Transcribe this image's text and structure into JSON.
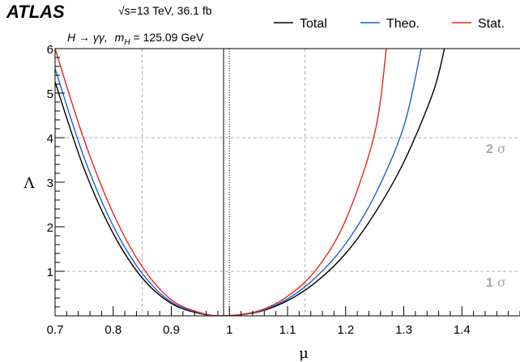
{
  "header": {
    "experiment": "ATLAS",
    "energy_line": "√s=13 TeV, 36.1 fb",
    "process_line_prefix": "H → γγ,",
    "process_line_mass": "m",
    "process_line_mass_sub": "H",
    "process_line_value": "= 125.09 GeV"
  },
  "chart_data": {
    "type": "line",
    "xlabel": "μ",
    "ylabel": "Λ",
    "xlim": [
      0.7,
      1.5
    ],
    "ylim": [
      0,
      6
    ],
    "x_ticks": [
      "0.7",
      "0.8",
      "0.9",
      "1",
      "1.1",
      "1.2",
      "1.3",
      "1.4"
    ],
    "x_tick_values": [
      0.7,
      0.8,
      0.9,
      1.0,
      1.1,
      1.2,
      1.3,
      1.4
    ],
    "y_ticks": [
      "1",
      "2",
      "3",
      "4",
      "5",
      "6"
    ],
    "y_tick_values": [
      1,
      2,
      3,
      4,
      5,
      6
    ],
    "legend": {
      "position": "top",
      "entries": [
        "Total",
        "Theo.",
        "Stat."
      ]
    },
    "series": [
      {
        "name": "Total",
        "color": "#000000",
        "best_fit": 0.99,
        "x": [
          0.7,
          0.75,
          0.8,
          0.85,
          0.9,
          0.95,
          0.99,
          1.05,
          1.1,
          1.15,
          1.2,
          1.25,
          1.3,
          1.35,
          1.37
        ],
        "y": [
          5.25,
          3.3,
          1.85,
          0.85,
          0.28,
          0.05,
          0.0,
          0.09,
          0.34,
          0.77,
          1.4,
          2.3,
          3.45,
          5.0,
          6.0
        ]
      },
      {
        "name": "Theo.",
        "color": "#1f5fd1",
        "best_fit": 0.99,
        "x": [
          0.7,
          0.75,
          0.8,
          0.85,
          0.9,
          0.95,
          0.99,
          1.05,
          1.1,
          1.15,
          1.2,
          1.25,
          1.3,
          1.33
        ],
        "y": [
          5.55,
          3.55,
          2.02,
          0.95,
          0.31,
          0.06,
          0.0,
          0.1,
          0.38,
          0.88,
          1.62,
          2.7,
          4.25,
          6.0
        ]
      },
      {
        "name": "Stat.",
        "color": "#e8261a",
        "best_fit": 0.99,
        "x": [
          0.7,
          0.75,
          0.8,
          0.85,
          0.9,
          0.95,
          0.99,
          1.05,
          1.1,
          1.15,
          1.2,
          1.25,
          1.27
        ],
        "y": [
          6.0,
          3.95,
          2.3,
          1.1,
          0.36,
          0.07,
          0.0,
          0.11,
          0.44,
          1.05,
          2.15,
          4.1,
          6.0
        ]
      }
    ],
    "reference_lines": {
      "horizontal": [
        {
          "y": 1,
          "label_value": "1",
          "label_symbol": "σ"
        },
        {
          "y": 4,
          "label_value": "2",
          "label_symbol": "σ"
        }
      ],
      "vertical_dashed_x": [
        0.85,
        1.13
      ],
      "best_fit_line_x": 0.99,
      "sm_line_x": 1.0
    },
    "grid": false
  }
}
